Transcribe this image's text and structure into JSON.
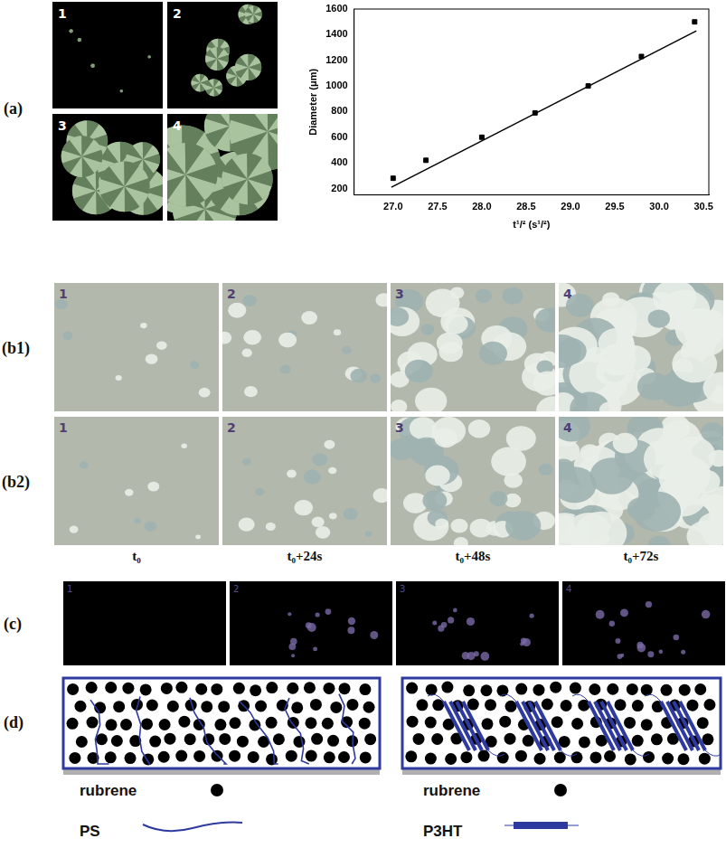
{
  "figure": {
    "panel_a": {
      "label": "(a)",
      "image_labels": [
        "1",
        "2",
        "3",
        "4"
      ]
    },
    "panel_b": {
      "rows": [
        {
          "label": "(b1)",
          "image_labels": [
            "1",
            "2",
            "3",
            "4"
          ]
        },
        {
          "label": "(b2)",
          "image_labels": [
            "1",
            "2",
            "3",
            "4"
          ]
        }
      ],
      "times": [
        "t₀",
        "t₀+24s",
        "t₀+48s",
        "t₀+72s"
      ]
    },
    "panel_c": {
      "label": "(c)",
      "image_labels": [
        "1",
        "2",
        "3",
        "4"
      ]
    },
    "panel_d": {
      "label": "(d)",
      "schemes": [
        {
          "particle": "rubrene",
          "polymer": "PS"
        },
        {
          "particle": "rubrene",
          "polymer": "P3HT"
        }
      ]
    }
  },
  "chart_data": {
    "type": "scatter",
    "xlabel": "t¹/² (s¹/²)",
    "ylabel": "Diameter (μm)",
    "xlim": [
      26.56,
      30.56
    ],
    "ylim": [
      150,
      1600
    ],
    "xticks": [
      {
        "value": 27,
        "label": "27.0"
      },
      27.5,
      {
        "value": 28,
        "label": "28.0"
      },
      28.5,
      {
        "value": 29,
        "label": "29.0"
      },
      29.5,
      {
        "value": 30,
        "label": "30.0"
      },
      30.5
    ],
    "yticks": [
      200,
      400,
      600,
      800,
      1000,
      1200,
      1400,
      1600
    ],
    "grid": false,
    "series": [
      {
        "type": "scatter",
        "marker": "square",
        "color": "#000000",
        "x": [
          27.0,
          27.37,
          28.0,
          28.6,
          29.2,
          29.8,
          30.4
        ],
        "values": [
          280,
          420,
          600,
          790,
          1000,
          1230,
          1500
        ]
      },
      {
        "type": "line",
        "line_style": "solid",
        "color": "#000000",
        "x": [
          26.98,
          30.42
        ],
        "values": [
          210,
          1430
        ]
      }
    ]
  }
}
